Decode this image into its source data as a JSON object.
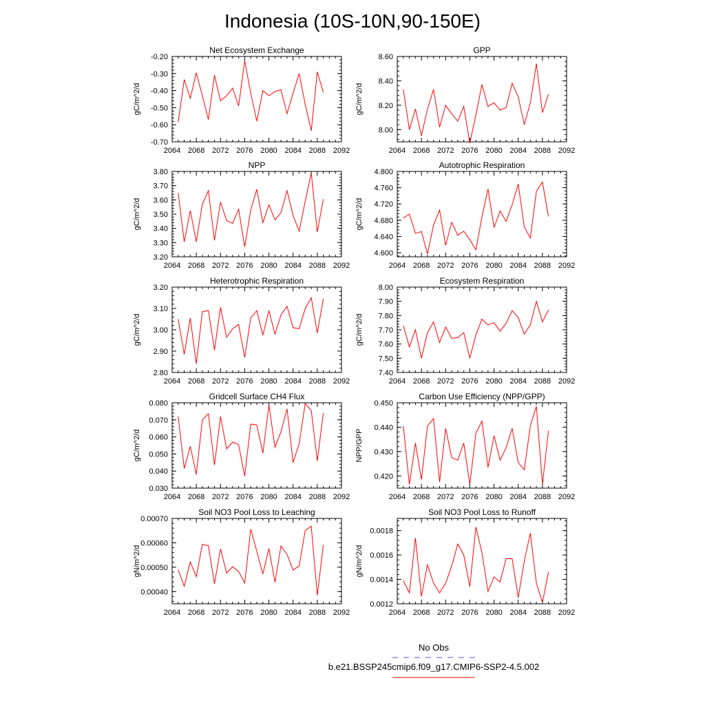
{
  "title": "Indonesia (10S-10N,90-150E)",
  "legend": {
    "obs_label": "No Obs",
    "obs_color": "#5555dd",
    "model_label": "b.e21.BSSP245cmip6.f09_g17.CMIP6-SSP2-4.5.002",
    "model_color": "#ff0000"
  },
  "chart_data": [
    {
      "type": "line",
      "title": "Net Ecosystem Exchange",
      "ylabel": "gC/m^2/d",
      "xlim": [
        2064,
        2092
      ],
      "ylim": [
        -0.7,
        -0.2
      ],
      "xticks": [
        "2064",
        "2068",
        "2072",
        "2076",
        "2080",
        "2084",
        "2088",
        "2092"
      ],
      "yticks": [
        "-0.70",
        "-0.60",
        "-0.50",
        "-0.40",
        "-0.30",
        "-0.20"
      ],
      "x": [
        2065,
        2066,
        2067,
        2068,
        2069,
        2070,
        2071,
        2072,
        2073,
        2074,
        2075,
        2076,
        2077,
        2078,
        2079,
        2080,
        2081,
        2082,
        2083,
        2084,
        2085,
        2086,
        2087,
        2088,
        2089
      ],
      "y": [
        -0.585,
        -0.335,
        -0.445,
        -0.295,
        -0.43,
        -0.57,
        -0.31,
        -0.46,
        -0.43,
        -0.385,
        -0.49,
        -0.225,
        -0.415,
        -0.58,
        -0.4,
        -0.43,
        -0.405,
        -0.395,
        -0.535,
        -0.415,
        -0.3,
        -0.48,
        -0.635,
        -0.29,
        -0.41
      ]
    },
    {
      "type": "line",
      "title": "GPP",
      "ylabel": "gC/m^2/d",
      "xlim": [
        2064,
        2092
      ],
      "ylim": [
        7.9,
        8.6
      ],
      "xticks": [
        "2064",
        "2068",
        "2072",
        "2076",
        "2080",
        "2084",
        "2088",
        "2092"
      ],
      "yticks": [
        "8.00",
        "8.20",
        "8.40",
        "8.60"
      ],
      "x": [
        2065,
        2066,
        2067,
        2068,
        2069,
        2070,
        2071,
        2072,
        2073,
        2074,
        2075,
        2076,
        2077,
        2078,
        2079,
        2080,
        2081,
        2082,
        2083,
        2084,
        2085,
        2086,
        2087,
        2088,
        2089
      ],
      "y": [
        8.33,
        8.0,
        8.17,
        7.95,
        8.17,
        8.33,
        8.02,
        8.2,
        8.13,
        8.07,
        8.19,
        7.89,
        8.12,
        8.37,
        8.19,
        8.22,
        8.16,
        8.18,
        8.38,
        8.27,
        8.04,
        8.22,
        8.54,
        8.14,
        8.29
      ]
    },
    {
      "type": "line",
      "title": "NPP",
      "ylabel": "gC/m^2/d",
      "xlim": [
        2064,
        2092
      ],
      "ylim": [
        3.2,
        3.8
      ],
      "xticks": [
        "2064",
        "2068",
        "2072",
        "2076",
        "2080",
        "2084",
        "2088",
        "2092"
      ],
      "yticks": [
        "3.20",
        "3.30",
        "3.40",
        "3.50",
        "3.60",
        "3.70",
        "3.80"
      ],
      "x": [
        2065,
        2066,
        2067,
        2068,
        2069,
        2070,
        2071,
        2072,
        2073,
        2074,
        2075,
        2076,
        2077,
        2078,
        2079,
        2080,
        2081,
        2082,
        2083,
        2084,
        2085,
        2086,
        2087,
        2088,
        2089
      ],
      "y": [
        3.65,
        3.305,
        3.525,
        3.305,
        3.57,
        3.665,
        3.315,
        3.585,
        3.455,
        3.435,
        3.535,
        3.27,
        3.53,
        3.675,
        3.44,
        3.565,
        3.46,
        3.51,
        3.665,
        3.49,
        3.38,
        3.59,
        3.79,
        3.375,
        3.605
      ]
    },
    {
      "type": "line",
      "title": "Autotrophic Respiration",
      "ylabel": "gC/m^2/d",
      "xlim": [
        2064,
        2092
      ],
      "ylim": [
        4.59,
        4.8
      ],
      "xticks": [
        "2064",
        "2068",
        "2072",
        "2076",
        "2080",
        "2084",
        "2088",
        "2092"
      ],
      "yticks": [
        "4.600",
        "4.640",
        "4.680",
        "4.720",
        "4.760",
        "4.800"
      ],
      "x": [
        2065,
        2066,
        2067,
        2068,
        2069,
        2070,
        2071,
        2072,
        2073,
        2074,
        2075,
        2076,
        2077,
        2078,
        2079,
        2080,
        2081,
        2082,
        2083,
        2084,
        2085,
        2086,
        2087,
        2088,
        2089
      ],
      "y": [
        4.685,
        4.695,
        4.648,
        4.652,
        4.597,
        4.668,
        4.705,
        4.618,
        4.675,
        4.643,
        4.653,
        4.632,
        4.607,
        4.688,
        4.757,
        4.662,
        4.703,
        4.677,
        4.718,
        4.769,
        4.664,
        4.636,
        4.751,
        4.774,
        4.689
      ]
    },
    {
      "type": "line",
      "title": "Heterotrophic Respiration",
      "ylabel": "gC/m^2/d",
      "xlim": [
        2064,
        2092
      ],
      "ylim": [
        2.8,
        3.2
      ],
      "xticks": [
        "2064",
        "2068",
        "2072",
        "2076",
        "2080",
        "2084",
        "2088",
        "2092"
      ],
      "yticks": [
        "2.80",
        "2.90",
        "3.00",
        "3.10",
        "3.20"
      ],
      "x": [
        2065,
        2066,
        2067,
        2068,
        2069,
        2070,
        2071,
        2072,
        2073,
        2074,
        2075,
        2076,
        2077,
        2078,
        2079,
        2080,
        2081,
        2082,
        2083,
        2084,
        2085,
        2086,
        2087,
        2088,
        2089
      ],
      "y": [
        3.05,
        2.885,
        3.055,
        2.84,
        3.085,
        3.09,
        2.905,
        3.105,
        2.965,
        3.005,
        3.025,
        2.87,
        3.055,
        3.09,
        2.975,
        3.09,
        2.98,
        3.07,
        3.11,
        3.01,
        3.005,
        3.1,
        3.15,
        2.985,
        3.145
      ]
    },
    {
      "type": "line",
      "title": "Ecosystem Respiration",
      "ylabel": "gC/m^2/d",
      "xlim": [
        2064,
        2092
      ],
      "ylim": [
        7.4,
        8.0
      ],
      "xticks": [
        "2064",
        "2068",
        "2072",
        "2076",
        "2080",
        "2084",
        "2088",
        "2092"
      ],
      "yticks": [
        "7.40",
        "7.50",
        "7.60",
        "7.70",
        "7.80",
        "7.90",
        "8.00"
      ],
      "x": [
        2065,
        2066,
        2067,
        2068,
        2069,
        2070,
        2071,
        2072,
        2073,
        2074,
        2075,
        2076,
        2077,
        2078,
        2079,
        2080,
        2081,
        2082,
        2083,
        2084,
        2085,
        2086,
        2087,
        2088,
        2089
      ],
      "y": [
        7.73,
        7.58,
        7.7,
        7.5,
        7.68,
        7.755,
        7.61,
        7.72,
        7.64,
        7.645,
        7.68,
        7.5,
        7.665,
        7.775,
        7.735,
        7.75,
        7.69,
        7.745,
        7.835,
        7.785,
        7.67,
        7.735,
        7.9,
        7.755,
        7.84
      ]
    },
    {
      "type": "line",
      "title": "Gridcell Surface CH4 Flux",
      "ylabel": "gC/m^2/d",
      "xlim": [
        2064,
        2092
      ],
      "ylim": [
        0.03,
        0.08
      ],
      "xticks": [
        "2064",
        "2068",
        "2072",
        "2076",
        "2080",
        "2084",
        "2088",
        "2092"
      ],
      "yticks": [
        "0.030",
        "0.040",
        "0.050",
        "0.060",
        "0.070",
        "0.080"
      ],
      "x": [
        2065,
        2066,
        2067,
        2068,
        2069,
        2070,
        2071,
        2072,
        2073,
        2074,
        2075,
        2076,
        2077,
        2078,
        2079,
        2080,
        2081,
        2082,
        2083,
        2084,
        2085,
        2086,
        2087,
        2088,
        2089
      ],
      "y": [
        0.072,
        0.0415,
        0.0545,
        0.038,
        0.07,
        0.0735,
        0.0435,
        0.072,
        0.053,
        0.057,
        0.0555,
        0.037,
        0.0675,
        0.067,
        0.0505,
        0.0785,
        0.054,
        0.063,
        0.0765,
        0.045,
        0.056,
        0.0795,
        0.0755,
        0.046,
        0.074
      ]
    },
    {
      "type": "line",
      "title": "Carbon Use Efficiency (NPP/GPP)",
      "ylabel": "NPP/GPP",
      "xlim": [
        2064,
        2092
      ],
      "ylim": [
        0.415,
        0.45
      ],
      "xticks": [
        "2064",
        "2068",
        "2072",
        "2076",
        "2080",
        "2084",
        "2088",
        "2092"
      ],
      "yticks": [
        "0.420",
        "0.430",
        "0.440",
        "0.450"
      ],
      "x": [
        2065,
        2066,
        2067,
        2068,
        2069,
        2070,
        2071,
        2072,
        2073,
        2074,
        2075,
        2076,
        2077,
        2078,
        2079,
        2080,
        2081,
        2082,
        2083,
        2084,
        2085,
        2086,
        2087,
        2088,
        2089
      ],
      "y": [
        0.4405,
        0.4165,
        0.4335,
        0.4185,
        0.4405,
        0.4435,
        0.4175,
        0.4395,
        0.4275,
        0.4265,
        0.4335,
        0.4165,
        0.4375,
        0.4425,
        0.4235,
        0.4365,
        0.4265,
        0.4315,
        0.4395,
        0.4255,
        0.4225,
        0.4405,
        0.4485,
        0.4165,
        0.4385
      ]
    },
    {
      "type": "line",
      "title": "Soil NO3 Pool Loss to Leaching",
      "ylabel": "gN/m^2/d",
      "xlim": [
        2064,
        2092
      ],
      "ylim": [
        0.00035,
        0.0007
      ],
      "xticks": [
        "2064",
        "2068",
        "2072",
        "2076",
        "2080",
        "2084",
        "2088",
        "2092"
      ],
      "yticks": [
        "0.00040",
        "0.00050",
        "0.00060",
        "0.00070"
      ],
      "x": [
        2065,
        2066,
        2067,
        2068,
        2069,
        2070,
        2071,
        2072,
        2073,
        2074,
        2075,
        2076,
        2077,
        2078,
        2079,
        2080,
        2081,
        2082,
        2083,
        2084,
        2085,
        2086,
        2087,
        2088,
        2089
      ],
      "y": [
        0.00049,
        0.000422,
        0.000522,
        0.000461,
        0.000594,
        0.000588,
        0.000432,
        0.000575,
        0.000476,
        0.000502,
        0.000482,
        0.000435,
        0.000656,
        0.000565,
        0.000472,
        0.000576,
        0.000438,
        0.000587,
        0.000553,
        0.000488,
        0.000505,
        0.000651,
        0.000668,
        0.000385,
        0.000592
      ]
    },
    {
      "type": "line",
      "title": "Soil NO3 Pool Loss to Runoff",
      "ylabel": "gN/m^2/d",
      "xlim": [
        2064,
        2092
      ],
      "ylim": [
        0.0012,
        0.0019
      ],
      "xticks": [
        "2064",
        "2068",
        "2072",
        "2076",
        "2080",
        "2084",
        "2088",
        "2092"
      ],
      "yticks": [
        "0.0012",
        "0.0014",
        "0.0016",
        "0.0018"
      ],
      "x": [
        2065,
        2066,
        2067,
        2068,
        2069,
        2070,
        2071,
        2072,
        2073,
        2074,
        2075,
        2076,
        2077,
        2078,
        2079,
        2080,
        2081,
        2082,
        2083,
        2084,
        2085,
        2086,
        2087,
        2088,
        2089
      ],
      "y": [
        0.00139,
        0.00129,
        0.00174,
        0.00126,
        0.00152,
        0.00137,
        0.00129,
        0.00137,
        0.00151,
        0.00169,
        0.0016,
        0.00134,
        0.00183,
        0.00162,
        0.0013,
        0.00142,
        0.00138,
        0.00157,
        0.00157,
        0.00125,
        0.00155,
        0.00178,
        0.00137,
        0.00121,
        0.00146
      ]
    }
  ]
}
